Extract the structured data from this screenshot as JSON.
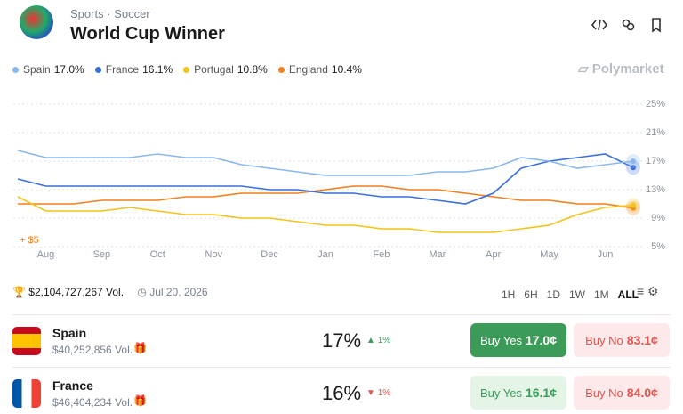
{
  "header": {
    "breadcrumb": [
      "Sports",
      "Soccer"
    ],
    "separator": "·",
    "title": "World Cup Winner"
  },
  "legend": [
    {
      "name": "Spain",
      "value": "17.0%"
    },
    {
      "name": "France",
      "value": "16.1%"
    },
    {
      "name": "Portugal",
      "value": "10.8%"
    },
    {
      "name": "England",
      "value": "10.4%"
    }
  ],
  "brand": "Polymarket",
  "chart_data": {
    "type": "line",
    "categories": [
      null,
      "Aug",
      null,
      "Sep",
      null,
      "Oct",
      null,
      "Nov",
      null,
      "Dec",
      null,
      "Jan",
      null,
      "Feb",
      null,
      "Mar",
      null,
      "Apr",
      null,
      "May",
      null,
      "Jun",
      null
    ],
    "series": [
      {
        "name": "Spain",
        "color": "#8ab8ec",
        "values": [
          18.5,
          17.5,
          17.5,
          17.5,
          17.5,
          18,
          17.5,
          17.5,
          16.5,
          16,
          15.5,
          15,
          15,
          15,
          15,
          15.5,
          15.5,
          16,
          17.5,
          17,
          16,
          16.5,
          17
        ]
      },
      {
        "name": "France",
        "color": "#3b6fdc",
        "values": [
          14.5,
          13.5,
          13.5,
          13.5,
          13.5,
          13.5,
          13.5,
          13.5,
          13.5,
          13,
          13,
          12.5,
          12.5,
          12,
          12,
          11.5,
          11,
          12.5,
          16,
          17,
          17.5,
          18,
          16.1
        ]
      },
      {
        "name": "Portugal",
        "color": "#f2c31b",
        "values": [
          12,
          10,
          10,
          10,
          10.5,
          10,
          9.5,
          9.5,
          9,
          9,
          8.5,
          8,
          8,
          7.5,
          7.5,
          7,
          7,
          7,
          7.5,
          8,
          9.5,
          10.5,
          10.8
        ]
      },
      {
        "name": "England",
        "color": "#f07f1e",
        "values": [
          11,
          11,
          11,
          11.5,
          11.5,
          11.5,
          12,
          12,
          12.5,
          12.5,
          12.5,
          13,
          13.5,
          13.5,
          13,
          13,
          12.5,
          12,
          11.5,
          11.5,
          11,
          11,
          10.4
        ]
      }
    ],
    "ylim": [
      5,
      25
    ],
    "yticks": [
      {
        "value": 5,
        "label": "5%"
      },
      {
        "value": 9,
        "label": "9%"
      },
      {
        "value": 13,
        "label": "13%"
      },
      {
        "value": 17,
        "label": "17%"
      },
      {
        "value": 21,
        "label": "21%"
      },
      {
        "value": 25,
        "label": "25%"
      }
    ],
    "grid": true,
    "annotation": "+ $5"
  },
  "stats": {
    "volume": "$2,104,727,267 Vol.",
    "date": "Jul 20, 2026"
  },
  "timeframes": [
    "1H",
    "6H",
    "1D",
    "1W",
    "1M",
    "ALL"
  ],
  "outcomes": [
    {
      "name": "Spain",
      "volume": "$40,252,856 Vol.",
      "chance": "17%",
      "change": "1%",
      "yes_label": "Buy Yes",
      "yes_price": "17.0¢",
      "no_label": "Buy No",
      "no_price": "83.1¢"
    },
    {
      "name": "France",
      "volume": "$46,404,234 Vol.",
      "chance": "16%",
      "change": "1%",
      "yes_label": "Buy Yes",
      "yes_price": "16.1¢",
      "no_label": "Buy No",
      "no_price": "84.0¢"
    }
  ]
}
